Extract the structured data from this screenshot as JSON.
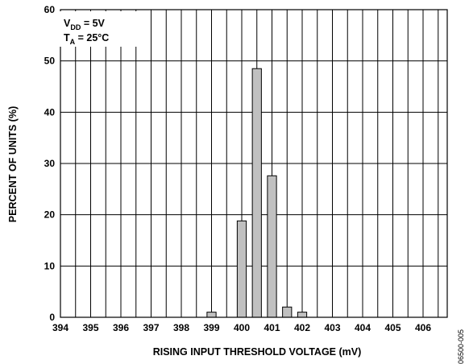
{
  "chart_data": {
    "type": "bar",
    "x": [
      399,
      400,
      400.5,
      401,
      401.5,
      402
    ],
    "values": [
      1.0,
      18.8,
      48.5,
      27.6,
      2.0,
      1.0
    ],
    "xlim": [
      394,
      406.8
    ],
    "ylim": [
      0,
      60
    ],
    "xticks": [
      394,
      395,
      396,
      397,
      398,
      399,
      400,
      401,
      402,
      403,
      404,
      405,
      406
    ],
    "yticks": [
      0,
      10,
      20,
      30,
      40,
      50,
      60
    ],
    "xlabel": "RISING INPUT THRESHOLD VOLTAGE (mV)",
    "ylabel": "PERCENT OF UNITS (%)",
    "grid": true,
    "bar_color": "#c0c0c0",
    "conditions": [
      {
        "main": "V",
        "sub": "DD",
        "rest": " = 5V"
      },
      {
        "main": "T",
        "sub": "A",
        "rest": " = 25°C"
      }
    ]
  },
  "figure_id": "06500-005"
}
